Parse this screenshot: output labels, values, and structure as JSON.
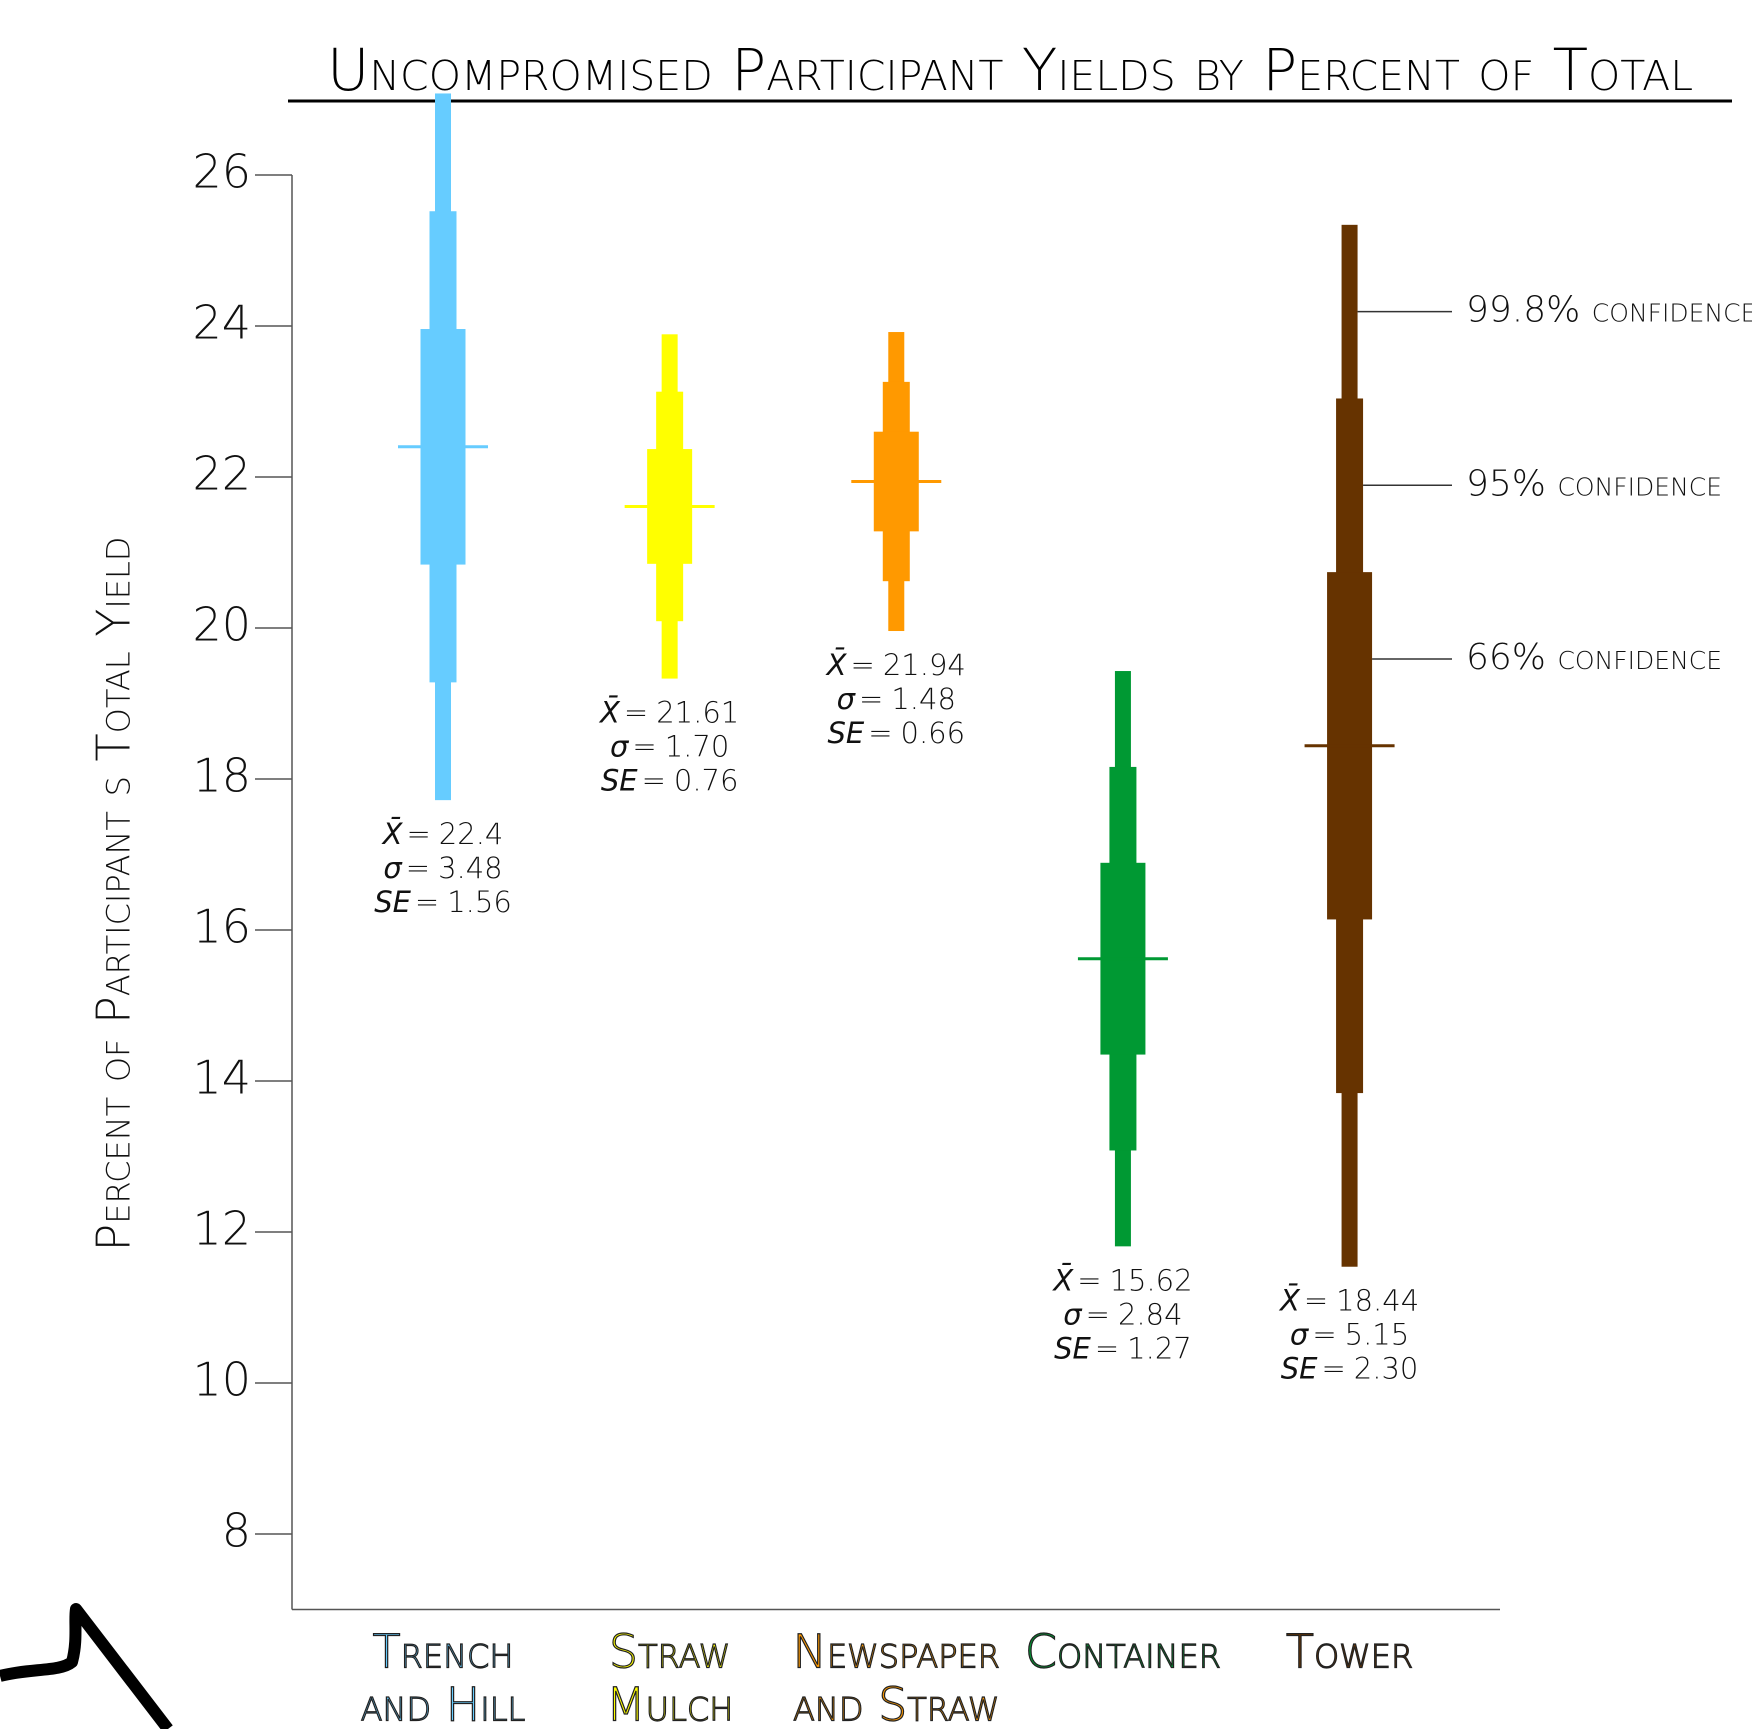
{
  "chart_data": {
    "type": "interval",
    "title": "Uncompromised Participant Yields by Percent of Total",
    "y_label": "Percent of Participant s Total Yield",
    "categories": [
      [
        "Trench",
        "and Hill"
      ],
      [
        "Straw",
        "Mulch"
      ],
      [
        "Newspaper",
        "and Straw"
      ],
      [
        "Container"
      ],
      [
        "Tower"
      ]
    ],
    "colors": [
      "#66ccff",
      "#ffff00",
      "#ff9900",
      "#009933",
      "#663300"
    ],
    "means": [
      22.4,
      21.61,
      21.94,
      15.62,
      18.44
    ],
    "sd": [
      3.48,
      1.7,
      1.48,
      2.84,
      5.15
    ],
    "sd_labels": [
      "3.48",
      "1.70",
      "1.48",
      "2.84",
      "5.15"
    ],
    "se": [
      1.56,
      0.76,
      0.66,
      1.27,
      2.3
    ],
    "se_labels": [
      "1.56",
      "0.76",
      "0.66",
      "1.27",
      "2.30"
    ],
    "stat_symbols": [
      "X̄",
      "σ",
      "SE"
    ],
    "stat_equals": "=",
    "intervals": [
      {
        "name": "99.8% confidence",
        "lower": [
          17.72,
          19.33,
          19.96,
          11.81,
          11.54
        ],
        "upper": [
          27.08,
          23.89,
          23.92,
          19.43,
          25.34
        ]
      },
      {
        "name": "95% confidence",
        "lower": [
          19.28,
          20.09,
          20.62,
          13.08,
          13.84
        ],
        "upper": [
          25.52,
          23.13,
          23.26,
          18.16,
          23.04
        ]
      },
      {
        "name": "66% confidence",
        "lower": [
          20.84,
          20.85,
          21.28,
          14.35,
          16.14
        ],
        "upper": [
          23.96,
          22.37,
          22.6,
          16.89,
          20.74
        ]
      }
    ],
    "ylim": [
      7,
      27
    ],
    "yticks": [
      8,
      10,
      12,
      14,
      16,
      18,
      20,
      22,
      24,
      26
    ]
  }
}
